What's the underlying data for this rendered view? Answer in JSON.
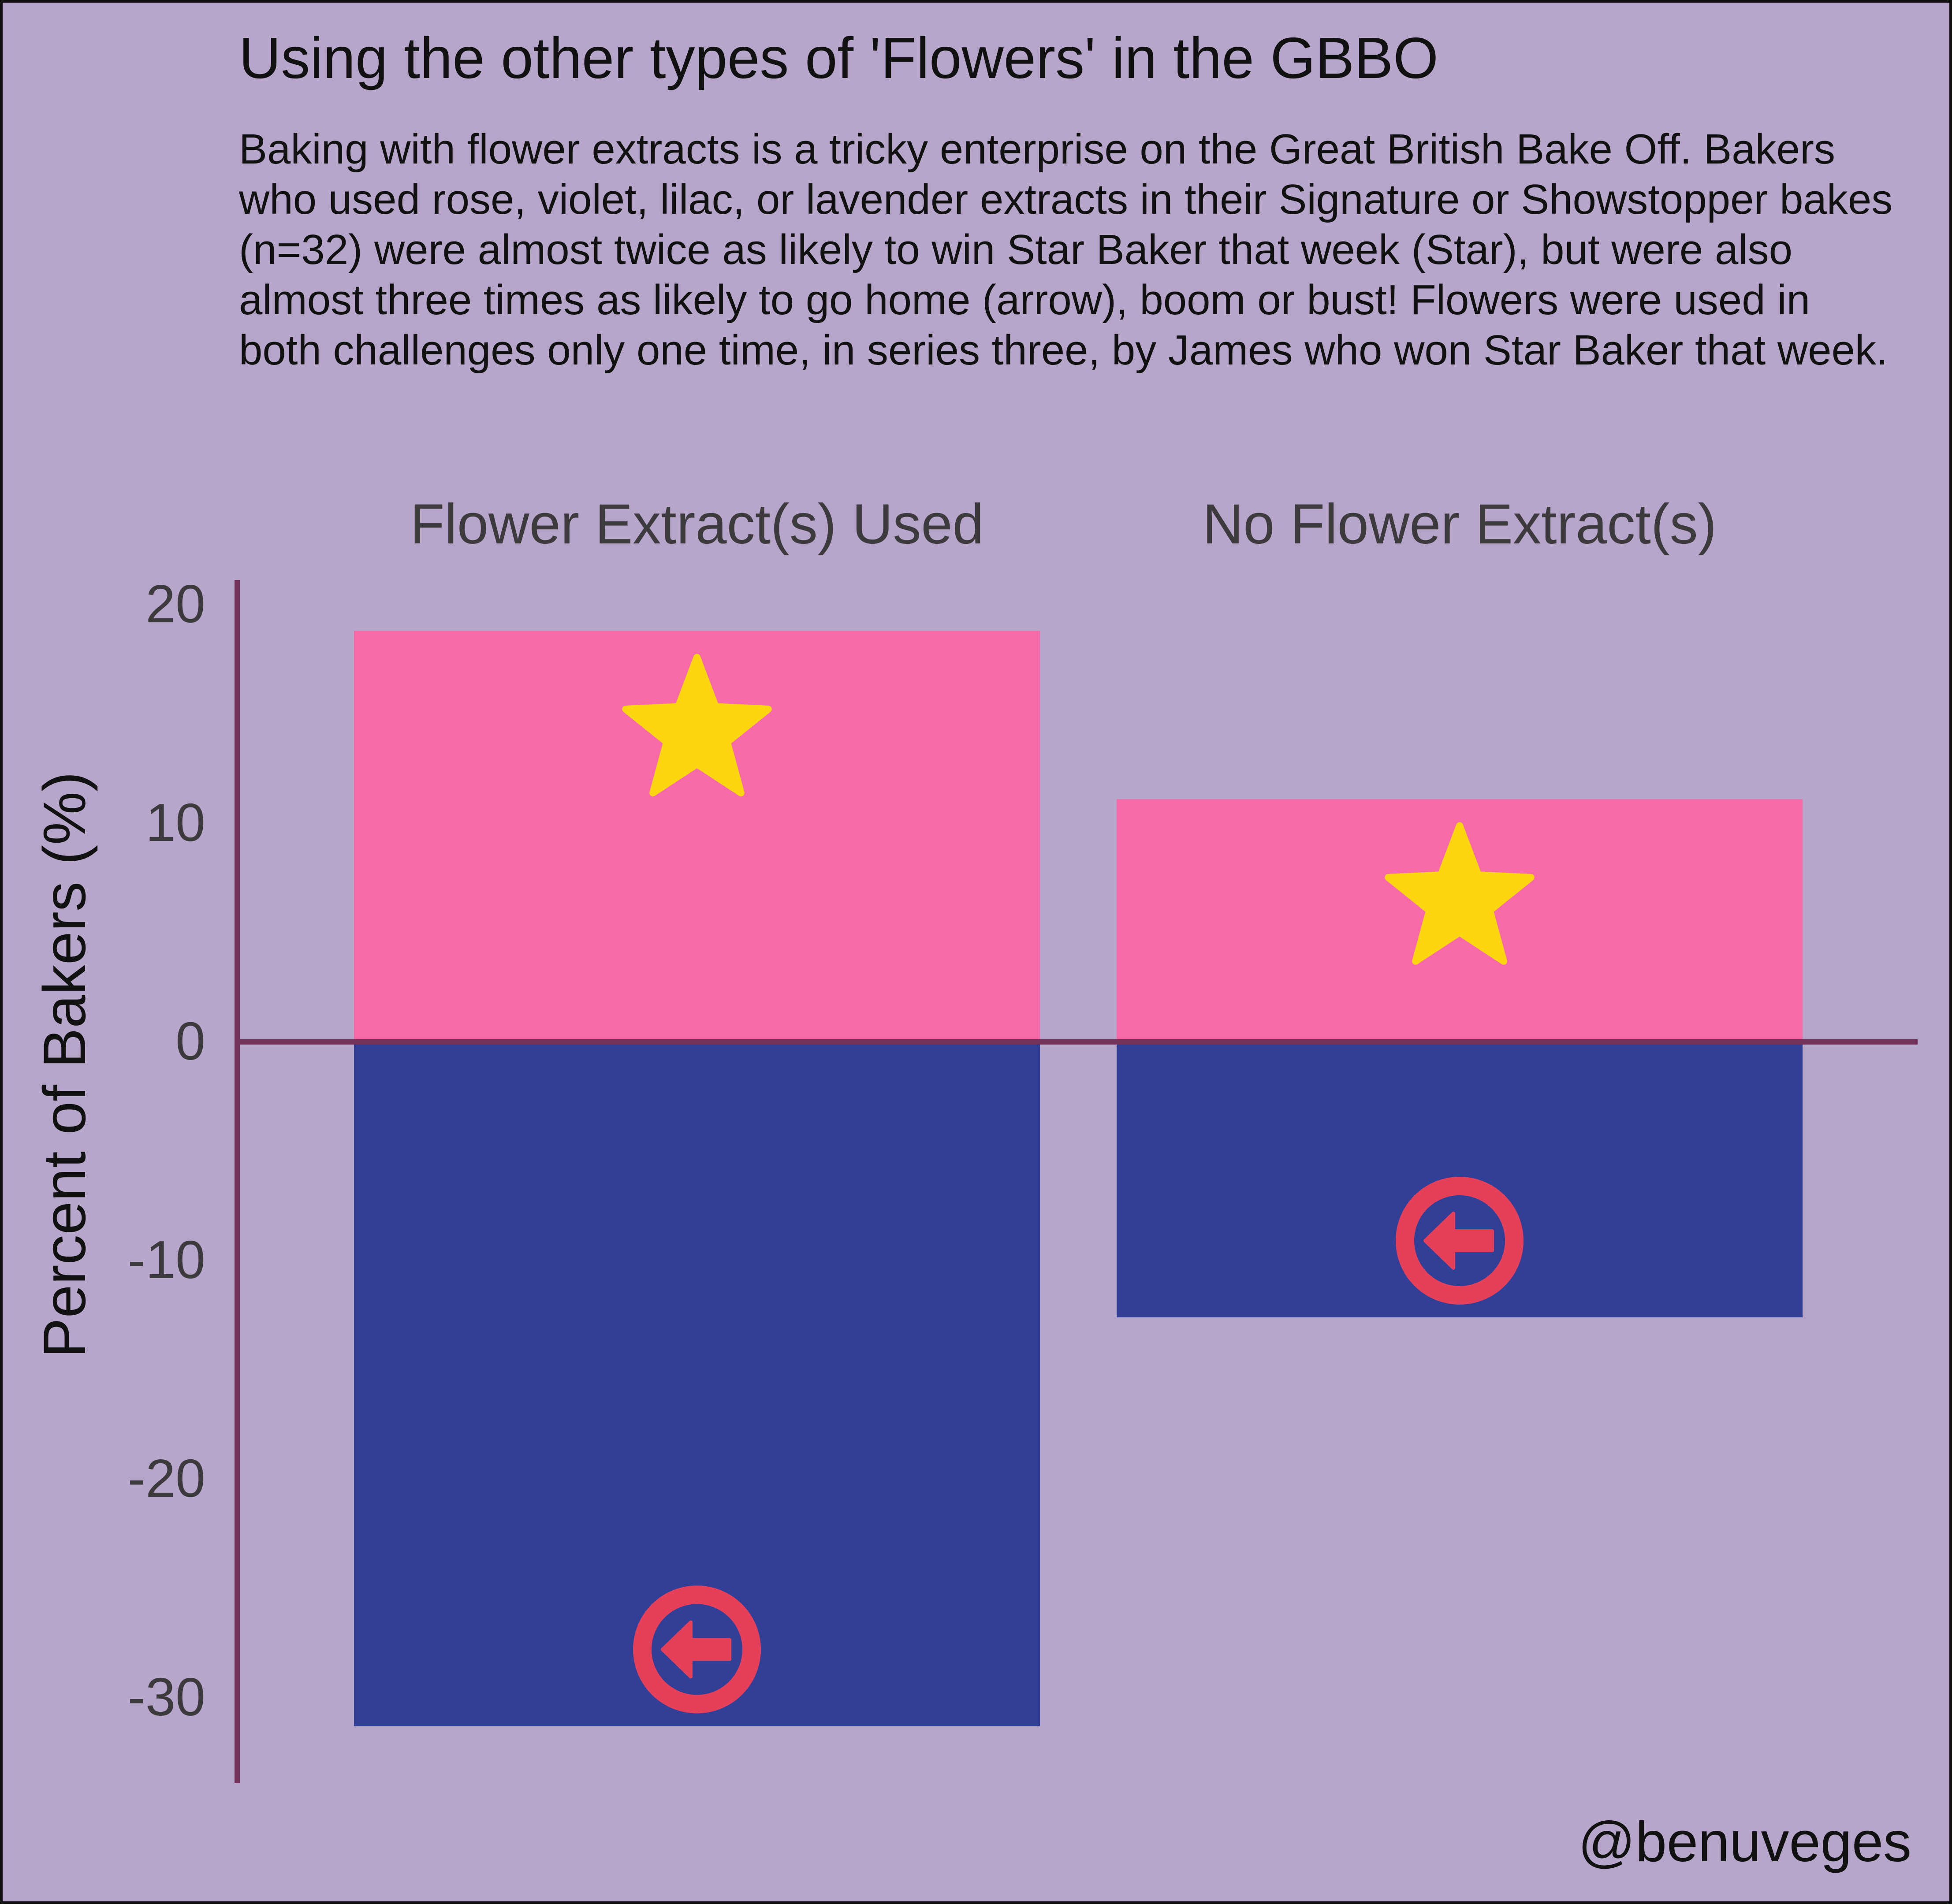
{
  "title": "Using the other types of 'Flowers' in the GBBO",
  "subtitle": "Baking with flower extracts is a tricky enterprise on the Great British Bake Off. Bakers who used rose, violet, lilac, or lavender extracts in their Signature or Showstopper bakes (n=32) were almost twice as likely to win Star Baker that week (Star), but were also almost three times as likely to go home (arrow), boom or bust! Flowers were used in both challenges only one time, in series three, by James who won Star Baker that week.",
  "credit": "@benuveges",
  "colors": {
    "background": "#b6a6ca",
    "star_baker_bar": "#f76aa7",
    "went_home_bar": "#323f96",
    "star_icon": "#fcd711",
    "arrow_icon": "#e4405a",
    "axis": "#74315a",
    "tick_text": "#3d3a3e"
  },
  "chart_data": {
    "type": "bar",
    "ylabel": "Percent of Bakers (%)",
    "xlabel": "",
    "ylim": [
      -34,
      21
    ],
    "yticks": [
      -30,
      -20,
      -10,
      0,
      10,
      20
    ],
    "panels": [
      "Flower Extract(s) Used",
      "No Flower Extract(s)"
    ],
    "series": [
      {
        "icon": "star-icon",
        "color": "#f76aa7",
        "values": [
          18.8,
          11.1
        ]
      },
      {
        "icon": "arrow-left-circle-icon",
        "color": "#323f96",
        "values": [
          -31.3,
          -12.6
        ]
      }
    ]
  }
}
